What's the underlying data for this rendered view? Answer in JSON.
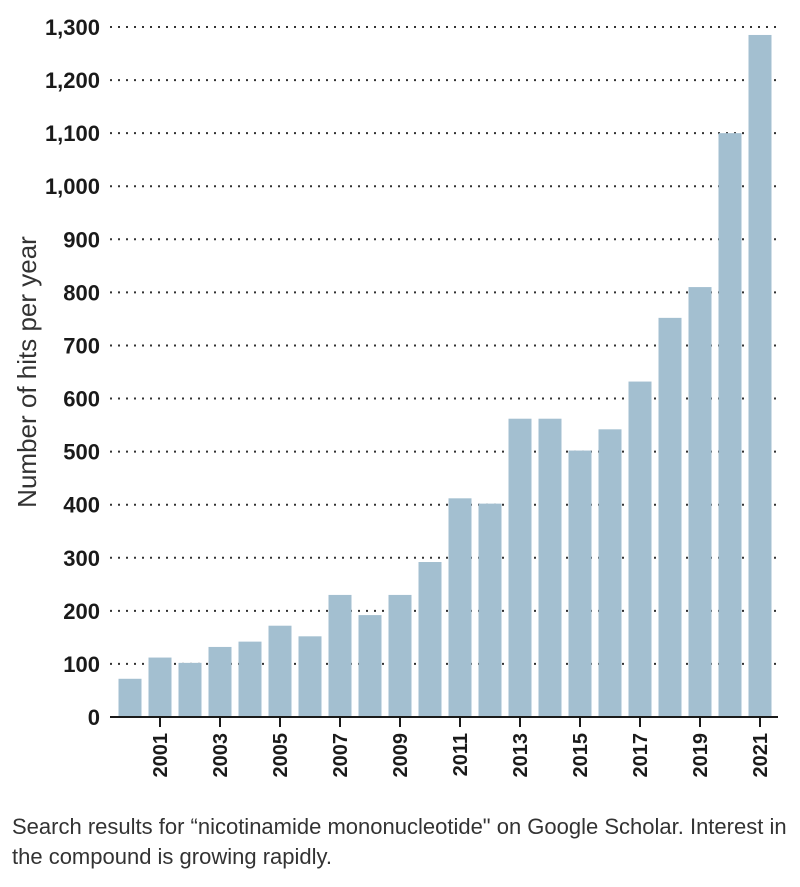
{
  "chart_data": {
    "type": "bar",
    "categories": [
      "2000",
      "2001",
      "2002",
      "2003",
      "2004",
      "2005",
      "2006",
      "2007",
      "2008",
      "2009",
      "2010",
      "2011",
      "2012",
      "2013",
      "2014",
      "2015",
      "2016",
      "2017",
      "2018",
      "2019",
      "2020",
      "2021"
    ],
    "values": [
      72,
      112,
      102,
      132,
      142,
      172,
      152,
      230,
      192,
      230,
      292,
      412,
      402,
      562,
      562,
      502,
      542,
      632,
      752,
      810,
      1100,
      1285
    ],
    "xtick_labels": [
      "2001",
      "2003",
      "2005",
      "2007",
      "2009",
      "2011",
      "2013",
      "2015",
      "2017",
      "2019",
      "2021"
    ],
    "ytick_labels": [
      "0",
      "100",
      "200",
      "300",
      "400",
      "500",
      "600",
      "700",
      "800",
      "900",
      "1,000",
      "1,100",
      "1,200",
      "1,300"
    ],
    "ylim": [
      0,
      1300
    ],
    "ylabel": "Number of hits per year",
    "xlabel": "",
    "title": "",
    "grid": "horizontal-dotted",
    "bar_color": "#a3bfd0"
  },
  "caption": "Search results for “nicotinamide mononucleotide\" on Google Scholar. Interest in the compound is growing rapidly."
}
